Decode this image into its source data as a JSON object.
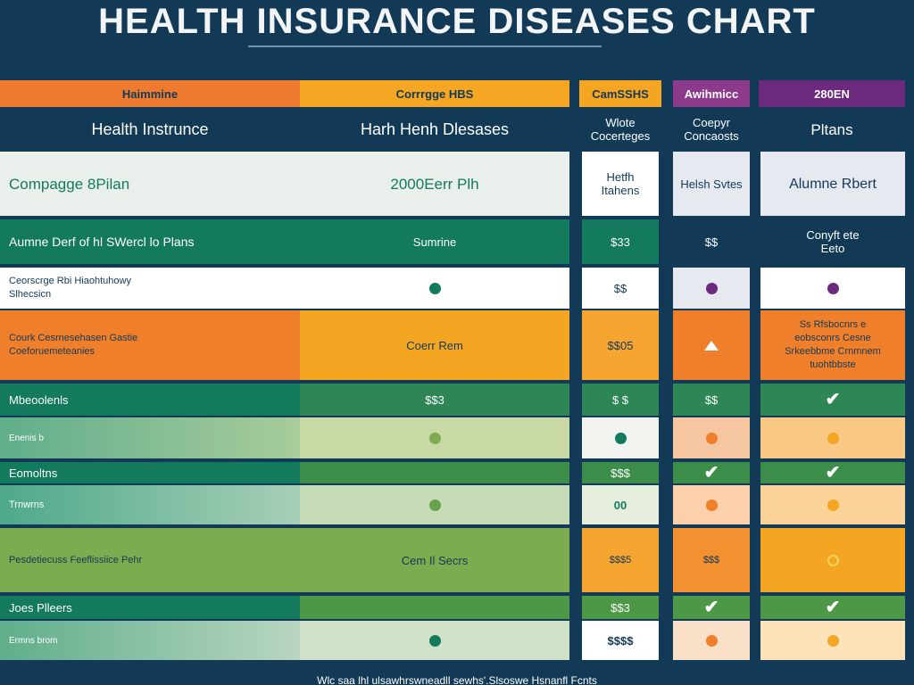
{
  "title": "HEALTH INSURANCE DISEASES CHART",
  "top_bar": [
    "Haimmine",
    "Corrrgge HBS",
    "CamSSHS",
    "Awihmicc",
    "280EN"
  ],
  "header": [
    "Health Instrunce",
    "Harh Henh Dlesases",
    "Wlote Cocerteges",
    "Coepyr Concaosts",
    "Pltans"
  ],
  "row1": [
    "Compagge 8Pilan",
    "2000Eerr Plh",
    "Hetfh Itahens",
    "Helsh Svtes",
    "Alumne Rbert"
  ],
  "row2": [
    "Aumne Derf of hl SWercl lo Plans",
    "Sumrine",
    "$33",
    "$$",
    "Conyft ete Eeto"
  ],
  "row3": [
    "Ceorscrge Rbi Hiaohtuhowy Slhecsicn",
    "",
    "$$",
    "",
    ""
  ],
  "row4": [
    "Courk Cesrnesehasen Gastie Coeforuemeteanies",
    "Coerr Rem",
    "$$05",
    "",
    "Ss Rfsbocnrs e eobsconrs Cesne Srkeebbme Crnmnem tuohtbbste"
  ],
  "row5": [
    "Mbeoolenls",
    "$$3",
    "$ $",
    "$$",
    ""
  ],
  "row6": [
    "Enenis b",
    "",
    "",
    "",
    ""
  ],
  "row7": [
    "Eomoltns",
    "",
    "$$$",
    "",
    ""
  ],
  "row8": [
    "Trnwrns",
    "",
    "00",
    "",
    ""
  ],
  "row9": [
    "Pesdetiecuss Feeflissiice Pehr",
    "Cem Il Secrs",
    "$$$5",
    "$$$",
    ""
  ],
  "row10": [
    "Joes Plleers",
    "",
    "$$3",
    "",
    ""
  ],
  "row11": [
    "Ermns brom",
    "",
    "$$$$",
    "",
    ""
  ],
  "footer": "Wlc saa lhl ulsawhrswneadll sewhs'.Slsoswe Hsnanfl Fcnts",
  "colors": {
    "navy": "#123a57",
    "orange": "#f07f2c",
    "amber": "#f4a623",
    "green": "#137a5d",
    "light_green": "#7dab4f",
    "purple": "#6b2a7d",
    "pale": "#eef2f0"
  },
  "icons": {
    "dot": "circle-marker-icon",
    "check": "check-mark-icon",
    "triangle": "warning-triangle-icon"
  }
}
